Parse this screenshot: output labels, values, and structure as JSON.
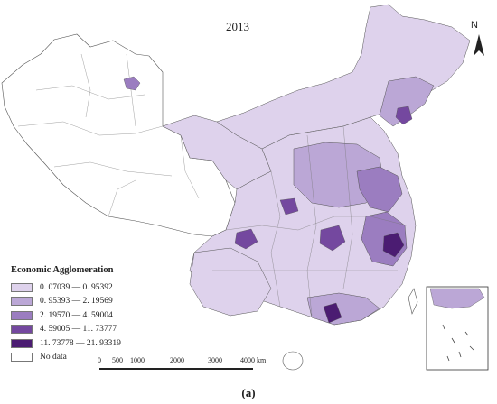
{
  "title": "2013",
  "caption": "(a)",
  "north_label": "N",
  "legend": {
    "title": "Economic Agglomeration",
    "items": [
      {
        "label": "0. 07039 — 0. 95392",
        "color": "#ded2ec"
      },
      {
        "label": "0. 95393 — 2. 19569",
        "color": "#bba7d6"
      },
      {
        "label": "2. 19570 — 4. 59004",
        "color": "#9b7dc0"
      },
      {
        "label": "4. 59005 — 11. 73777",
        "color": "#74489f"
      },
      {
        "label": "11. 73778 — 21. 93319",
        "color": "#4b1c72"
      },
      {
        "label": "No data",
        "color": "#ffffff"
      }
    ]
  },
  "scale_bar": {
    "ticks": [
      "0",
      "500",
      "1000",
      "2000",
      "3000",
      "4000"
    ],
    "unit": "km"
  }
}
